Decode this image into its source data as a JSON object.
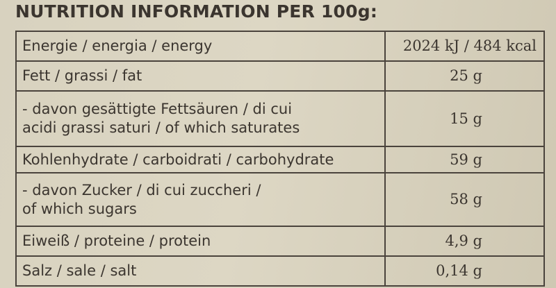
{
  "title": "NUTRITION INFORMATION PER 100g:",
  "table": {
    "rows": [
      [
        [
          "Energie / energia / energy"
        ],
        "2024 kJ / 484 kcal"
      ],
      [
        [
          "Fett / grassi / fat"
        ],
        "25 g"
      ],
      [
        [
          "- davon gesättigte Fettsäuren / di cui",
          "acidi grassi saturi / of which saturates"
        ],
        "15 g"
      ],
      [
        [
          "Kohlenhydrate / carboidrati / carbohydrate"
        ],
        "59 g"
      ],
      [
        [
          "- davon Zucker / di cui zuccheri /",
          "of which sugars"
        ],
        "58 g"
      ],
      [
        [
          "Eiweiß / proteine / protein"
        ],
        "4,9 g"
      ],
      [
        [
          "Salz / sale / salt"
        ],
        "0,14 g"
      ]
    ]
  }
}
